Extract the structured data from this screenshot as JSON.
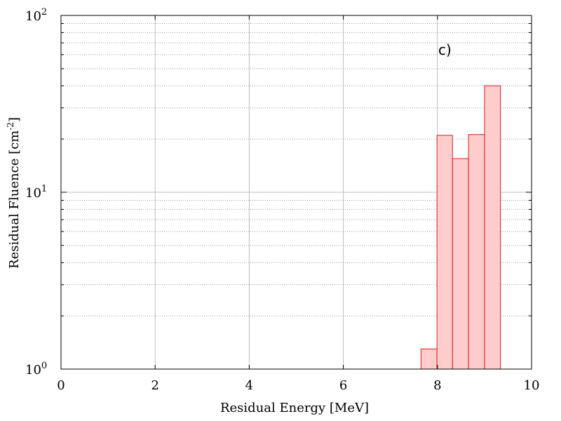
{
  "chart_data": {
    "type": "bar",
    "xlabel": "Residual Energy [MeV]",
    "ylabel_main": "Residual Fluence [cm",
    "ylabel_sup": "-2",
    "ylabel_end": "]",
    "annotation": "c)",
    "x_scale": "linear",
    "y_scale": "log",
    "xlim": [
      0,
      10
    ],
    "ylim": [
      1,
      100
    ],
    "xticks": [
      0,
      2,
      4,
      6,
      8,
      10
    ],
    "xtick_labels": [
      "0",
      "2",
      "4",
      "6",
      "8",
      "10"
    ],
    "yticks_major": [
      1,
      10,
      100
    ],
    "ytick_base": "10",
    "ytick_exponents": [
      "0",
      "1",
      "2"
    ],
    "grid": true,
    "bins": [
      {
        "x0": 7.65,
        "x1": 7.99,
        "value": 1.3
      },
      {
        "x0": 7.99,
        "x1": 8.32,
        "value": 21.0
      },
      {
        "x0": 8.32,
        "x1": 8.66,
        "value": 15.5
      },
      {
        "x0": 8.66,
        "x1": 9.0,
        "value": 21.2
      },
      {
        "x0": 9.0,
        "x1": 9.34,
        "value": 40.0
      }
    ],
    "colors": {
      "bar_fill": "#ffcccc",
      "bar_stroke": "#d62020",
      "grid": "#bdbdbd",
      "axis": "#000000"
    }
  }
}
